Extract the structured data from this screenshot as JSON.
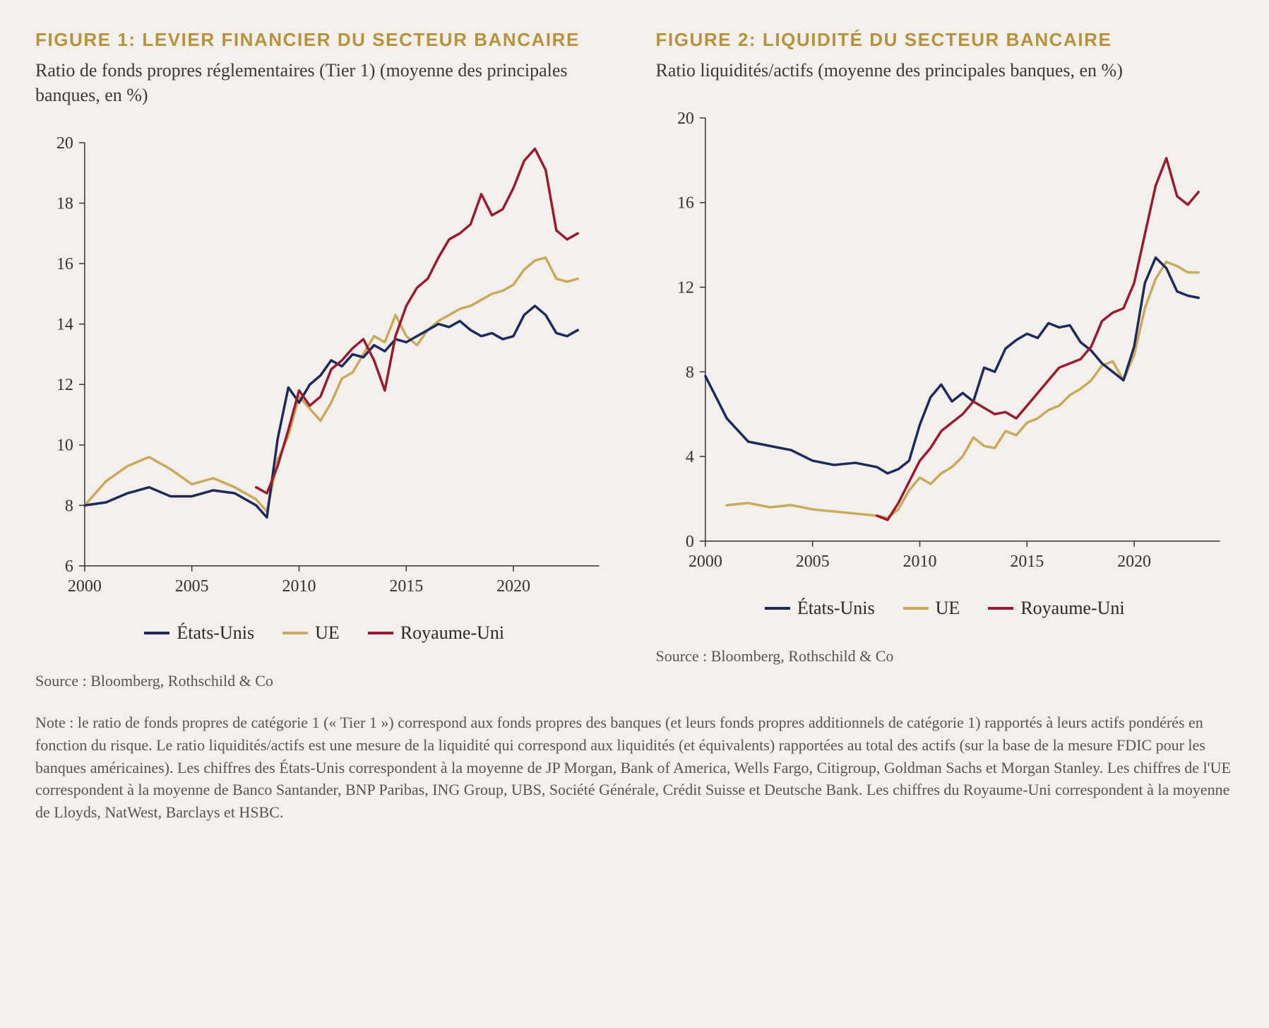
{
  "colors": {
    "us": "#1e2a5a",
    "eu": "#c9a95a",
    "uk": "#9a1b30",
    "axis": "#333333",
    "bg": "#f2efed"
  },
  "line_width": 3.5,
  "legend_labels": {
    "us": "États-Unis",
    "eu": "UE",
    "uk": "Royaume-Uni"
  },
  "fig1": {
    "title": "FIGURE 1: LEVIER FINANCIER DU SECTEUR BANCAIRE",
    "subtitle": "Ratio de fonds propres réglementaires (Tier 1) (moyenne des principales banques, en %)",
    "source": "Source :  Bloomberg, Rothschild & Co",
    "ylim": [
      6,
      20
    ],
    "ytick_step": 2,
    "xlim": [
      2000,
      2024
    ],
    "xticks": [
      2000,
      2005,
      2010,
      2015,
      2020
    ],
    "x_vals": [
      2000,
      2001,
      2002,
      2003,
      2004,
      2005,
      2006,
      2007,
      2008,
      2008.5,
      2009,
      2009.5,
      2010,
      2010.5,
      2011,
      2011.5,
      2012,
      2012.5,
      2013,
      2013.5,
      2014,
      2014.5,
      2015,
      2015.5,
      2016,
      2016.5,
      2017,
      2017.5,
      2018,
      2018.5,
      2019,
      2019.5,
      2020,
      2020.5,
      2021,
      2021.5,
      2022,
      2022.5,
      2023
    ],
    "us": [
      8.0,
      8.1,
      8.4,
      8.6,
      8.3,
      8.3,
      8.5,
      8.4,
      8.0,
      7.6,
      10.2,
      11.9,
      11.4,
      12.0,
      12.3,
      12.8,
      12.6,
      13.0,
      12.9,
      13.3,
      13.1,
      13.5,
      13.4,
      13.6,
      13.8,
      14.0,
      13.9,
      14.1,
      13.8,
      13.6,
      13.7,
      13.5,
      13.6,
      14.3,
      14.6,
      14.3,
      13.7,
      13.6,
      13.8
    ],
    "eu": [
      8.0,
      8.8,
      9.3,
      9.6,
      9.2,
      8.7,
      8.9,
      8.6,
      8.2,
      7.8,
      9.5,
      10.3,
      11.6,
      11.2,
      10.8,
      11.4,
      12.2,
      12.4,
      13.0,
      13.6,
      13.4,
      14.3,
      13.6,
      13.3,
      13.8,
      14.1,
      14.3,
      14.5,
      14.6,
      14.8,
      15.0,
      15.1,
      15.3,
      15.8,
      16.1,
      16.2,
      15.5,
      15.4,
      15.5
    ],
    "uk": [
      null,
      null,
      null,
      null,
      null,
      null,
      null,
      null,
      8.6,
      8.4,
      9.3,
      10.5,
      11.8,
      11.3,
      11.6,
      12.5,
      12.8,
      13.2,
      13.5,
      12.8,
      11.8,
      13.6,
      14.6,
      15.2,
      15.5,
      16.2,
      16.8,
      17.0,
      17.3,
      18.3,
      17.6,
      17.8,
      18.5,
      19.4,
      19.8,
      19.1,
      17.1,
      16.8,
      17.0
    ]
  },
  "fig2": {
    "title": "FIGURE 2: LIQUIDITÉ DU SECTEUR BANCAIRE",
    "subtitle": "Ratio liquidités/actifs (moyenne des principales banques, en %)",
    "source": "Source :  Bloomberg, Rothschild & Co",
    "ylim": [
      0,
      20
    ],
    "ytick_step": 4,
    "xlim": [
      2000,
      2024
    ],
    "xticks": [
      2000,
      2005,
      2010,
      2015,
      2020
    ],
    "x_vals": [
      2000,
      2001,
      2002,
      2003,
      2004,
      2005,
      2006,
      2007,
      2008,
      2008.5,
      2009,
      2009.5,
      2010,
      2010.5,
      2011,
      2011.5,
      2012,
      2012.5,
      2013,
      2013.5,
      2014,
      2014.5,
      2015,
      2015.5,
      2016,
      2016.5,
      2017,
      2017.5,
      2018,
      2018.5,
      2019,
      2019.5,
      2020,
      2020.5,
      2021,
      2021.5,
      2022,
      2022.5,
      2023
    ],
    "us": [
      7.8,
      5.8,
      4.7,
      4.5,
      4.3,
      3.8,
      3.6,
      3.7,
      3.5,
      3.2,
      3.4,
      3.8,
      5.5,
      6.8,
      7.4,
      6.6,
      7.0,
      6.6,
      8.2,
      8.0,
      9.1,
      9.5,
      9.8,
      9.6,
      10.3,
      10.1,
      10.2,
      9.4,
      9.0,
      8.4,
      8.0,
      7.6,
      9.2,
      12.2,
      13.4,
      12.9,
      11.8,
      11.6,
      11.5
    ],
    "eu": [
      null,
      1.7,
      1.8,
      1.6,
      1.7,
      1.5,
      1.4,
      1.3,
      1.2,
      1.1,
      1.5,
      2.4,
      3.0,
      2.7,
      3.2,
      3.5,
      4.0,
      4.9,
      4.5,
      4.4,
      5.2,
      5.0,
      5.6,
      5.8,
      6.2,
      6.4,
      6.9,
      7.2,
      7.6,
      8.3,
      8.5,
      7.6,
      8.8,
      11.0,
      12.4,
      13.2,
      13.0,
      12.7,
      12.7
    ],
    "uk": [
      null,
      null,
      null,
      null,
      null,
      null,
      null,
      null,
      1.2,
      1.0,
      1.8,
      2.8,
      3.8,
      4.4,
      5.2,
      5.6,
      6.0,
      6.6,
      6.3,
      6.0,
      6.1,
      5.8,
      6.4,
      7.0,
      7.6,
      8.2,
      8.4,
      8.6,
      9.2,
      10.4,
      10.8,
      11.0,
      12.2,
      14.5,
      16.8,
      18.1,
      16.3,
      15.9,
      16.5
    ]
  },
  "note": "Note : le ratio de fonds propres de catégorie 1 (« Tier 1 ») correspond aux fonds propres des banques (et leurs fonds propres additionnels de catégorie 1) rapportés à leurs actifs pondérés en fonction du risque. Le ratio liquidités/actifs est une mesure de la liquidité qui correspond aux liquidités (et équivalents) rapportées au total des actifs (sur la base de la mesure FDIC pour les banques américaines). Les chiffres des États-Unis correspondent à la moyenne de JP Morgan, Bank of America, Wells Fargo, Citigroup, Goldman Sachs et Morgan Stanley. Les chiffres de l'UE correspondent à la moyenne de Banco Santander, BNP Paribas, ING Group, UBS, Société Générale, Crédit Suisse et Deutsche Bank. Les chiffres du Royaume-Uni correspondent à la moyenne de Lloyds, NatWest, Barclays et HSBC."
}
